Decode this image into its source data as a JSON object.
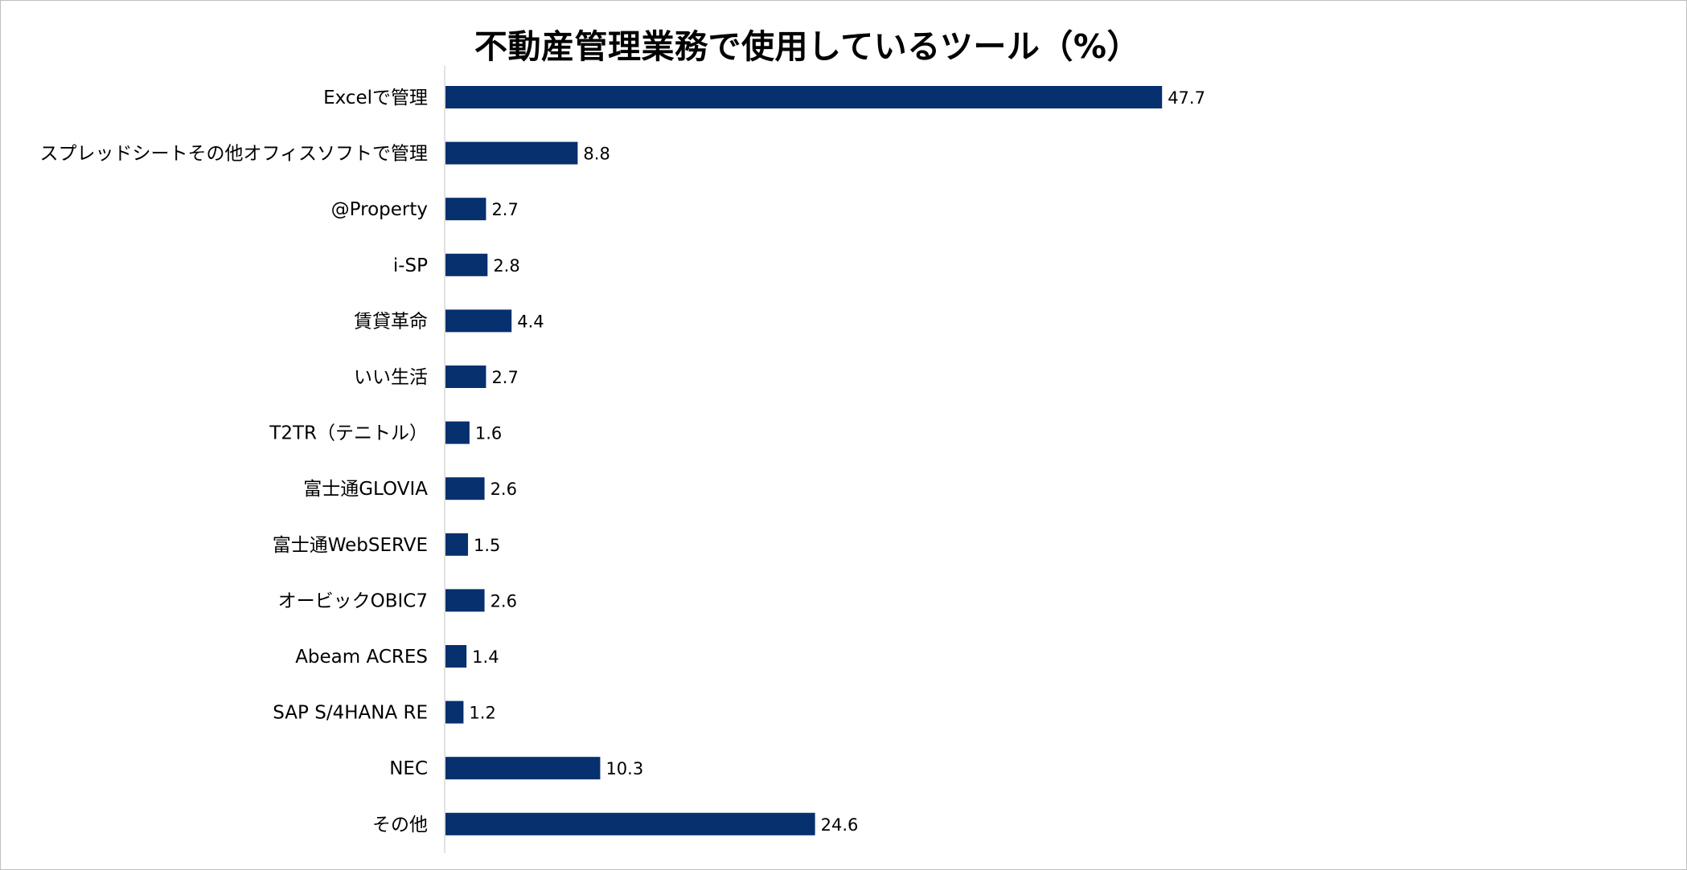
{
  "chart_data": {
    "type": "bar",
    "orientation": "horizontal",
    "title": "不動産管理業務で使用しているツール（%）",
    "categories": [
      "Excelで管理",
      "スプレッドシートその他オフィスソフトで管理",
      "@Property",
      "i-SP",
      "賃貸革命",
      "いい生活",
      "T2TR（テニトル）",
      "富士通GLOVIA",
      "富士通WebSERVE",
      "オービックOBIC7",
      "Abeam ACRES",
      "SAP S/4HANA  RE",
      "NEC",
      "その他"
    ],
    "values": [
      47.7,
      8.8,
      2.7,
      2.8,
      4.4,
      2.7,
      1.6,
      2.6,
      1.5,
      2.6,
      1.4,
      1.2,
      10.3,
      24.6
    ],
    "value_labels": [
      "47.7",
      "8.8",
      "2.7",
      "2.8",
      "4.4",
      "2.7",
      "1.6",
      "2.6",
      "1.5",
      "2.6",
      "1.4",
      "1.2",
      "10.3",
      "24.6"
    ],
    "xlim": [
      0,
      60
    ],
    "xlabel": "",
    "ylabel": "",
    "grid": false,
    "legend": "none",
    "bar_color": "#06306E",
    "axis_color": "#d9d9d9"
  }
}
